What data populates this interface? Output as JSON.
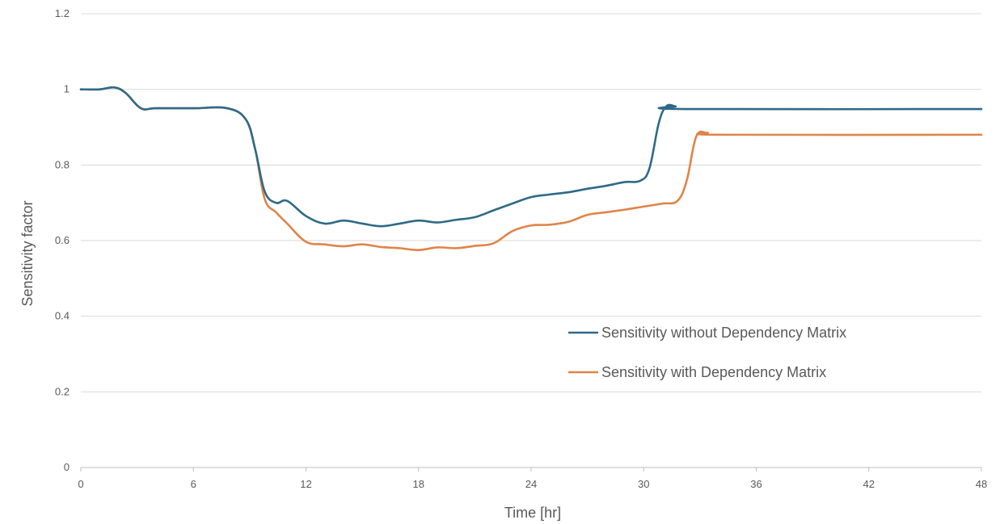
{
  "chart_data": {
    "type": "line",
    "title": "",
    "xlabel": "Time [hr]",
    "ylabel": "Sensitivity factor",
    "xlim": [
      0,
      48
    ],
    "ylim": [
      0,
      1.2
    ],
    "xticks": [
      "0",
      "6",
      "12",
      "18",
      "24",
      "30",
      "36",
      "42",
      "48"
    ],
    "yticks": [
      "0",
      "0.2",
      "0.4",
      "0.6",
      "0.8",
      "1",
      "1.2"
    ],
    "grid": "horizontal",
    "legend_position": "lower-right",
    "series": [
      {
        "name": "Sensitivity without Dependency Matrix",
        "color": "#2e6a87",
        "x": [
          0,
          1,
          1.8,
          2.4,
          3.2,
          4,
          6,
          7.8,
          8.8,
          9.3,
          9.8,
          10.4,
          11,
          12,
          13,
          14,
          15,
          16,
          17,
          18,
          19,
          20,
          21,
          22,
          23,
          24,
          25,
          26,
          27,
          28,
          29,
          29.8,
          30.3,
          30.8,
          31.2,
          31.7,
          32.2,
          48
        ],
        "y": [
          1.0,
          1.0,
          1.005,
          0.99,
          0.95,
          0.95,
          0.95,
          0.95,
          0.92,
          0.84,
          0.73,
          0.7,
          0.705,
          0.665,
          0.645,
          0.653,
          0.645,
          0.638,
          0.645,
          0.653,
          0.648,
          0.655,
          0.662,
          0.68,
          0.698,
          0.715,
          0.722,
          0.728,
          0.737,
          0.745,
          0.755,
          0.758,
          0.79,
          0.91,
          0.955,
          0.955,
          0.948,
          0.948
        ]
      },
      {
        "name": "Sensitivity with Dependency Matrix",
        "color": "#e08448",
        "x": [
          0,
          1,
          1.8,
          2.4,
          3.2,
          4,
          6,
          7.8,
          8.8,
          9.3,
          9.8,
          10.4,
          11,
          12,
          13,
          14,
          15,
          16,
          17,
          18,
          19,
          20,
          21,
          22,
          23,
          24,
          25,
          26,
          27,
          28,
          29,
          30,
          31,
          31.8,
          32.3,
          32.8,
          33.4,
          34.2,
          48
        ],
        "y": [
          1.0,
          1.0,
          1.005,
          0.99,
          0.95,
          0.95,
          0.95,
          0.95,
          0.92,
          0.84,
          0.71,
          0.675,
          0.645,
          0.597,
          0.59,
          0.585,
          0.59,
          0.583,
          0.58,
          0.575,
          0.582,
          0.58,
          0.586,
          0.593,
          0.625,
          0.64,
          0.642,
          0.65,
          0.668,
          0.675,
          0.682,
          0.69,
          0.698,
          0.705,
          0.76,
          0.875,
          0.885,
          0.88,
          0.88
        ]
      }
    ]
  }
}
